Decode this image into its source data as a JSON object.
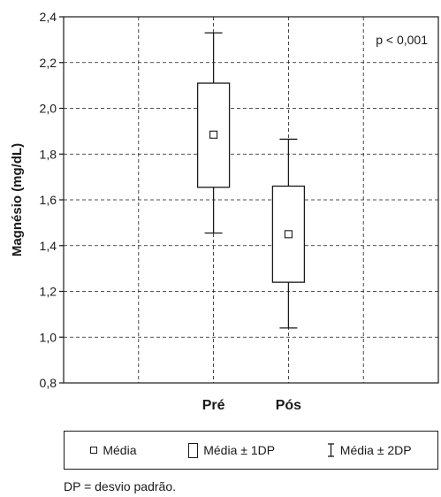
{
  "chart_data": {
    "type": "box",
    "ylabel": "Magnésio (mg/dL)",
    "categories": [
      "Pré",
      "Pós"
    ],
    "ylim": [
      0.8,
      2.4
    ],
    "yticks": [
      "0,8",
      "1,0",
      "1,2",
      "1,4",
      "1,6",
      "1,8",
      "2,0",
      "2,2",
      "2,4"
    ],
    "ytick_values": [
      0.8,
      1.0,
      1.2,
      1.4,
      1.6,
      1.8,
      2.0,
      2.2,
      2.4
    ],
    "series": [
      {
        "category": "Pré",
        "mean": 1.885,
        "minus_1sd": 1.655,
        "plus_1sd": 2.11,
        "minus_2sd": 1.455,
        "plus_2sd": 2.33
      },
      {
        "category": "Pós",
        "mean": 1.45,
        "minus_1sd": 1.24,
        "plus_1sd": 1.66,
        "minus_2sd": 1.04,
        "plus_2sd": 1.865
      }
    ],
    "annotation": "p < 0,001",
    "grid": true,
    "legend": {
      "placement": "bottom",
      "items": [
        "Média",
        "Média ± 1DP",
        "Média ± 2DP"
      ]
    },
    "footnote": "DP = desvio padrão."
  },
  "colors": {
    "ink": "#1a1a1a",
    "background": "#ffffff"
  }
}
